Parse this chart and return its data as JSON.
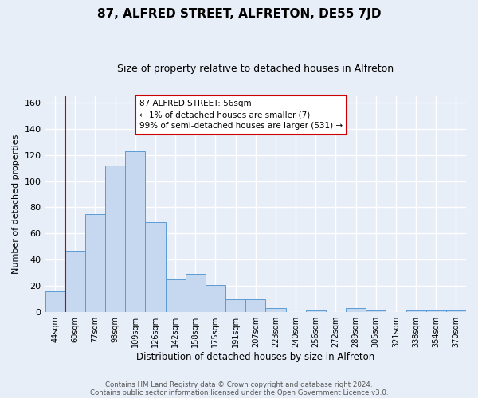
{
  "title": "87, ALFRED STREET, ALFRETON, DE55 7JD",
  "subtitle": "Size of property relative to detached houses in Alfreton",
  "xlabel": "Distribution of detached houses by size in Alfreton",
  "ylabel": "Number of detached properties",
  "bar_color": "#c5d8f0",
  "bar_edge_color": "#5b9bd5",
  "background_color": "#e8eef8",
  "grid_color": "#ffffff",
  "redline_color": "#cc0000",
  "categories": [
    "44sqm",
    "60sqm",
    "77sqm",
    "93sqm",
    "109sqm",
    "126sqm",
    "142sqm",
    "158sqm",
    "175sqm",
    "191sqm",
    "207sqm",
    "223sqm",
    "240sqm",
    "256sqm",
    "272sqm",
    "289sqm",
    "305sqm",
    "321sqm",
    "338sqm",
    "354sqm",
    "370sqm"
  ],
  "values": [
    16,
    47,
    75,
    112,
    123,
    69,
    25,
    29,
    21,
    10,
    10,
    3,
    0,
    1,
    0,
    3,
    1,
    0,
    1,
    1,
    1
  ],
  "ylim": [
    0,
    165
  ],
  "yticks": [
    0,
    20,
    40,
    60,
    80,
    100,
    120,
    140,
    160
  ],
  "annotation_line1": "87 ALFRED STREET: 56sqm",
  "annotation_line2": "← 1% of detached houses are smaller (7)",
  "annotation_line3": "99% of semi-detached houses are larger (531) →",
  "footer1": "Contains HM Land Registry data © Crown copyright and database right 2024.",
  "footer2": "Contains public sector information licensed under the Open Government Licence v3.0."
}
